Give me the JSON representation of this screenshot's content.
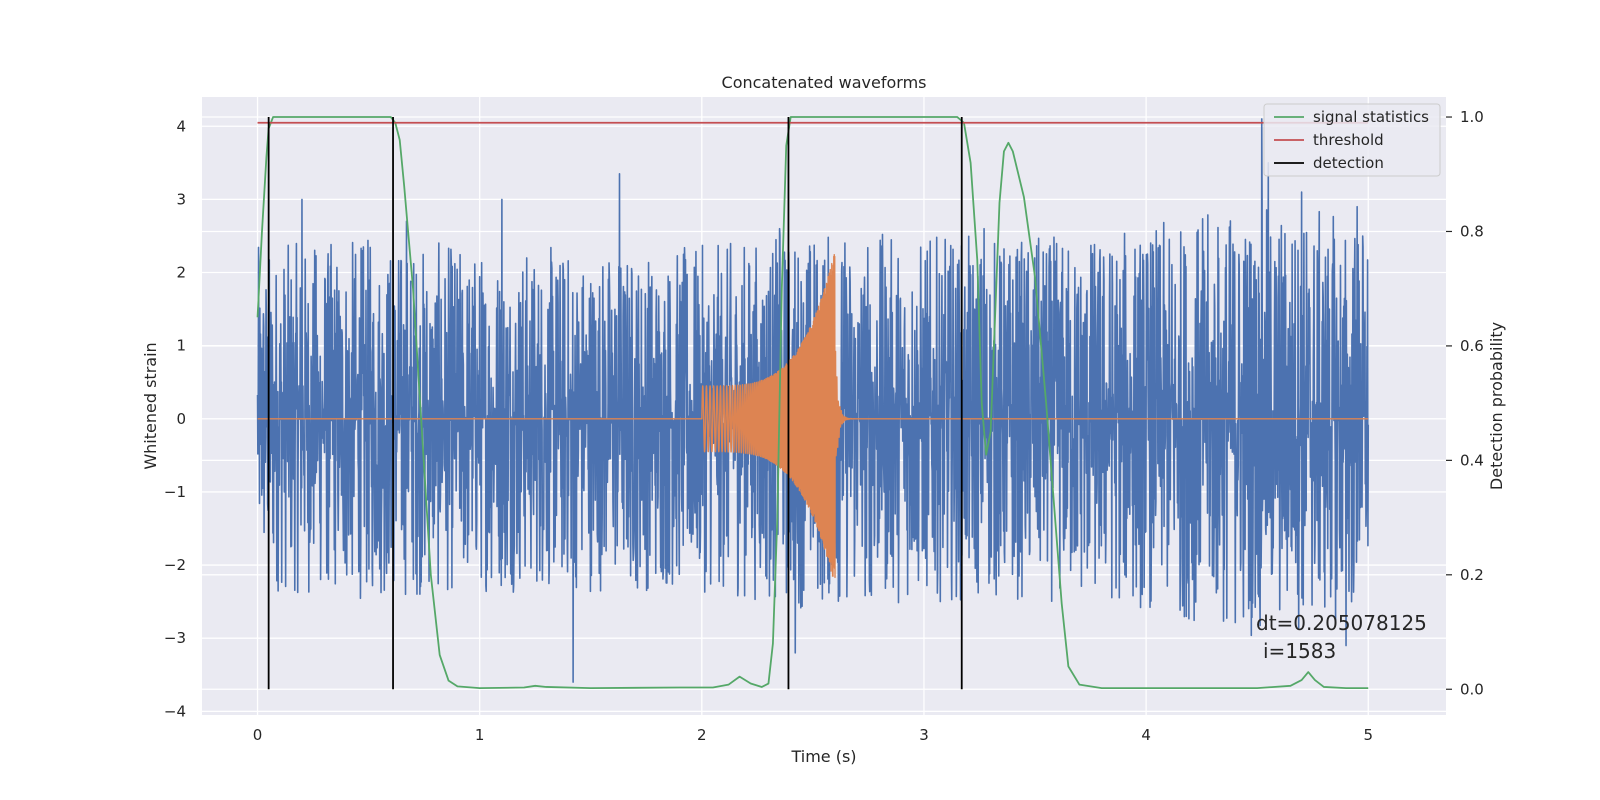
{
  "chart_data": {
    "type": "line",
    "title": "Concatenated waveforms",
    "xlabel": "Time (s)",
    "ylabel": "Whitened strain",
    "ylabel_right": "Detection probability",
    "xlim": [
      -0.25,
      5.35
    ],
    "ylim_left": [
      -4.05,
      4.4
    ],
    "ylim_right": [
      -0.045,
      1.035
    ],
    "xticks": [
      0,
      1,
      2,
      3,
      4,
      5
    ],
    "yticks_left": [
      -4,
      -3,
      -2,
      -1,
      0,
      1,
      2,
      3,
      4
    ],
    "yticks_right": [
      0.0,
      0.2,
      0.4,
      0.6,
      0.8,
      1.0
    ],
    "ytick_labels_left": [
      "−4",
      "−3",
      "−2",
      "−1",
      "0",
      "1",
      "2",
      "3",
      "4"
    ],
    "ytick_labels_right": [
      "0.0",
      "0.2",
      "0.4",
      "0.6",
      "0.8",
      "1.0"
    ],
    "grid": true,
    "legend_position": "top-right",
    "noise": {
      "axis": "left",
      "color": "#4c72b0",
      "x_range": [
        0,
        5
      ],
      "envelope": [
        [
          0,
          1.9
        ],
        [
          0.5,
          2.0
        ],
        [
          1.0,
          1.9
        ],
        [
          1.5,
          1.9
        ],
        [
          2.0,
          1.9
        ],
        [
          2.5,
          2.1
        ],
        [
          3.0,
          2.0
        ],
        [
          3.5,
          2.0
        ],
        [
          4.0,
          2.1
        ],
        [
          4.5,
          2.4
        ],
        [
          5.0,
          2.2
        ]
      ],
      "spikes": [
        [
          0.2,
          3.0
        ],
        [
          0.67,
          2.7
        ],
        [
          1.1,
          3.0
        ],
        [
          1.42,
          -3.6
        ],
        [
          1.63,
          3.35
        ],
        [
          2.35,
          2.6
        ],
        [
          2.42,
          -3.2
        ],
        [
          3.27,
          2.6
        ],
        [
          4.52,
          4.1
        ],
        [
          4.55,
          3.5
        ],
        [
          4.7,
          3.1
        ],
        [
          4.9,
          -3.1
        ],
        [
          4.95,
          2.9
        ]
      ]
    },
    "chirp": {
      "axis": "left",
      "color": "#dd8452",
      "x_range": [
        2.0,
        2.6
      ],
      "amplitude_start": 0.45,
      "amplitude_peak": 2.3,
      "peak_time": 2.6
    },
    "series": [
      {
        "name": "signal statistics",
        "axis": "right",
        "color": "#55a868",
        "x": [
          0,
          0.02,
          0.04,
          0.05,
          0.07,
          0.1,
          0.2,
          0.4,
          0.55,
          0.6,
          0.62,
          0.64,
          0.66,
          0.7,
          0.74,
          0.78,
          0.82,
          0.86,
          0.9,
          1.0,
          1.2,
          1.25,
          1.3,
          1.5,
          1.9,
          2.05,
          2.12,
          2.17,
          2.22,
          2.27,
          2.3,
          2.32,
          2.34,
          2.36,
          2.38,
          2.4,
          2.44,
          2.5,
          3.0,
          3.15,
          3.18,
          3.21,
          3.24,
          3.26,
          3.28,
          3.3,
          3.32,
          3.34,
          3.36,
          3.38,
          3.4,
          3.45,
          3.5,
          3.55,
          3.58,
          3.62,
          3.65,
          3.7,
          3.8,
          4.0,
          4.5,
          4.65,
          4.7,
          4.73,
          4.76,
          4.8,
          4.9,
          5.0
        ],
        "values": [
          0.65,
          0.8,
          0.93,
          0.98,
          1.0,
          1.0,
          1.0,
          1.0,
          1.0,
          1.0,
          0.99,
          0.96,
          0.88,
          0.7,
          0.45,
          0.2,
          0.06,
          0.015,
          0.005,
          0.002,
          0.003,
          0.006,
          0.004,
          0.002,
          0.003,
          0.003,
          0.008,
          0.022,
          0.01,
          0.004,
          0.01,
          0.08,
          0.3,
          0.7,
          0.95,
          1.0,
          1.0,
          1.0,
          1.0,
          1.0,
          0.99,
          0.92,
          0.75,
          0.5,
          0.41,
          0.45,
          0.65,
          0.85,
          0.94,
          0.955,
          0.94,
          0.86,
          0.72,
          0.5,
          0.35,
          0.15,
          0.04,
          0.008,
          0.002,
          0.002,
          0.002,
          0.006,
          0.016,
          0.03,
          0.016,
          0.004,
          0.002,
          0.002
        ]
      },
      {
        "name": "threshold",
        "axis": "right",
        "color": "#c44e52",
        "x": [
          0,
          5
        ],
        "values": [
          0.99,
          0.99
        ]
      },
      {
        "name": "detection",
        "axis": "right",
        "color": "#000000",
        "type": "vlines",
        "x": [
          0.05,
          0.61,
          2.39,
          3.17
        ],
        "range": [
          0,
          1
        ]
      }
    ],
    "annotations": [
      "dt=0.205078125",
      "i=1583"
    ]
  }
}
